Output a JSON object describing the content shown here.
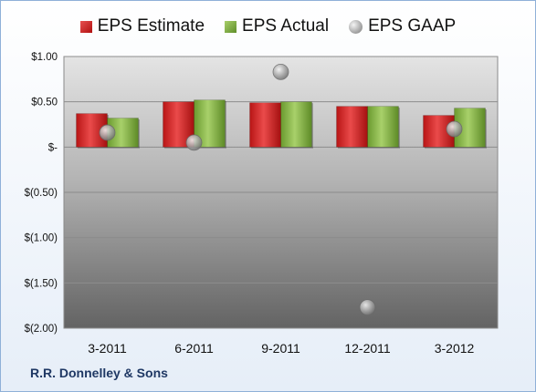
{
  "chart_data": {
    "type": "bar",
    "categories": [
      "3-2011",
      "6-2011",
      "9-2011",
      "12-2011",
      "3-2012"
    ],
    "series": [
      {
        "name": "EPS Estimate",
        "kind": "bar",
        "color": "#cc2020",
        "values": [
          0.37,
          0.5,
          0.49,
          0.45,
          0.35
        ]
      },
      {
        "name": "EPS Actual",
        "kind": "bar",
        "color": "#7fab3c",
        "values": [
          0.32,
          0.52,
          0.5,
          0.45,
          0.43
        ]
      },
      {
        "name": "EPS GAAP",
        "kind": "scatter",
        "color": "#a8a8a8",
        "values": [
          0.16,
          0.05,
          0.83,
          -1.77,
          0.2
        ]
      }
    ],
    "ylim": [
      -2.0,
      1.0
    ],
    "yticks": [
      1.0,
      0.5,
      0.0,
      -0.5,
      -1.0,
      -1.5,
      -2.0
    ],
    "ytick_labels": [
      "$1.00",
      "$0.50",
      "$-",
      "$(0.50)",
      "$(1.00)",
      "$(1.50)",
      "$(2.00)"
    ],
    "legend_position": "top",
    "grid": true
  },
  "company_name": "R.R. Donnelley & Sons"
}
